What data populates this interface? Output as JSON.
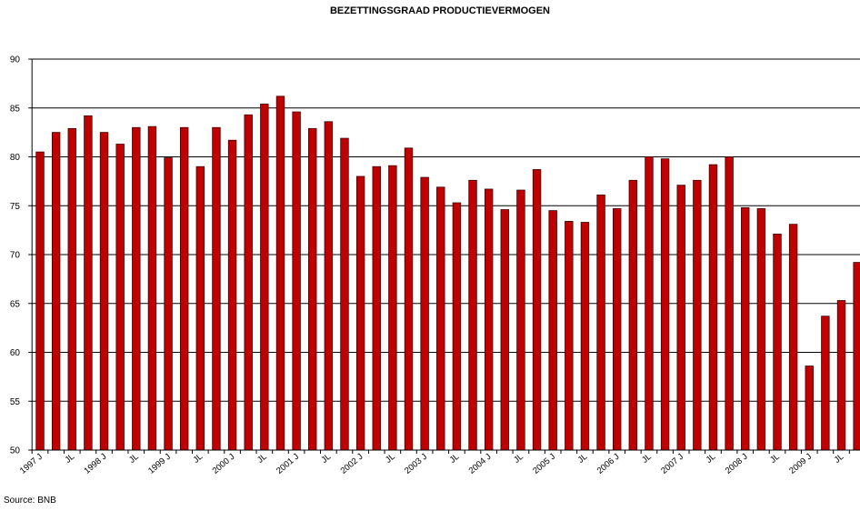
{
  "chart_data": {
    "type": "bar",
    "title": "BEZETTINGSGRAAD PRODUCTIEVERMOGEN",
    "source": "Source: BNB",
    "categories": [
      "1997 J",
      null,
      "JL",
      null,
      "1998 J",
      null,
      "JL",
      null,
      "1999 J",
      null,
      "JL",
      null,
      "2000 J",
      null,
      "JL",
      null,
      "2001 J",
      null,
      "JL",
      null,
      "2002 J",
      null,
      "JL",
      null,
      "2003 J",
      null,
      "JL",
      null,
      "2004 J",
      null,
      "JL",
      null,
      "2005 J",
      null,
      "JL",
      null,
      "2006 J",
      null,
      "JL",
      null,
      "2007 J",
      null,
      "JL",
      null,
      "2008 J",
      null,
      "JL",
      null,
      "2009 J",
      null,
      "JL",
      null
    ],
    "values": [
      80.5,
      82.5,
      82.9,
      84.2,
      82.5,
      81.3,
      83.0,
      83.1,
      79.9,
      83.0,
      79.0,
      83.0,
      81.7,
      84.3,
      85.4,
      86.2,
      84.6,
      82.9,
      83.6,
      81.9,
      78.0,
      79.0,
      79.1,
      80.9,
      77.9,
      76.9,
      75.3,
      77.6,
      76.7,
      74.6,
      76.6,
      78.7,
      74.5,
      73.4,
      73.3,
      76.1,
      74.7,
      77.6,
      80.0,
      79.8,
      77.1,
      77.6,
      79.2,
      80.0,
      74.8,
      74.7,
      72.1,
      73.1,
      58.6,
      63.7,
      65.3,
      69.2
    ],
    "color": "#c00000",
    "ylim": [
      50,
      90
    ],
    "yticks": [
      50,
      55,
      60,
      65,
      70,
      75,
      80,
      85,
      90
    ],
    "grid": true
  }
}
